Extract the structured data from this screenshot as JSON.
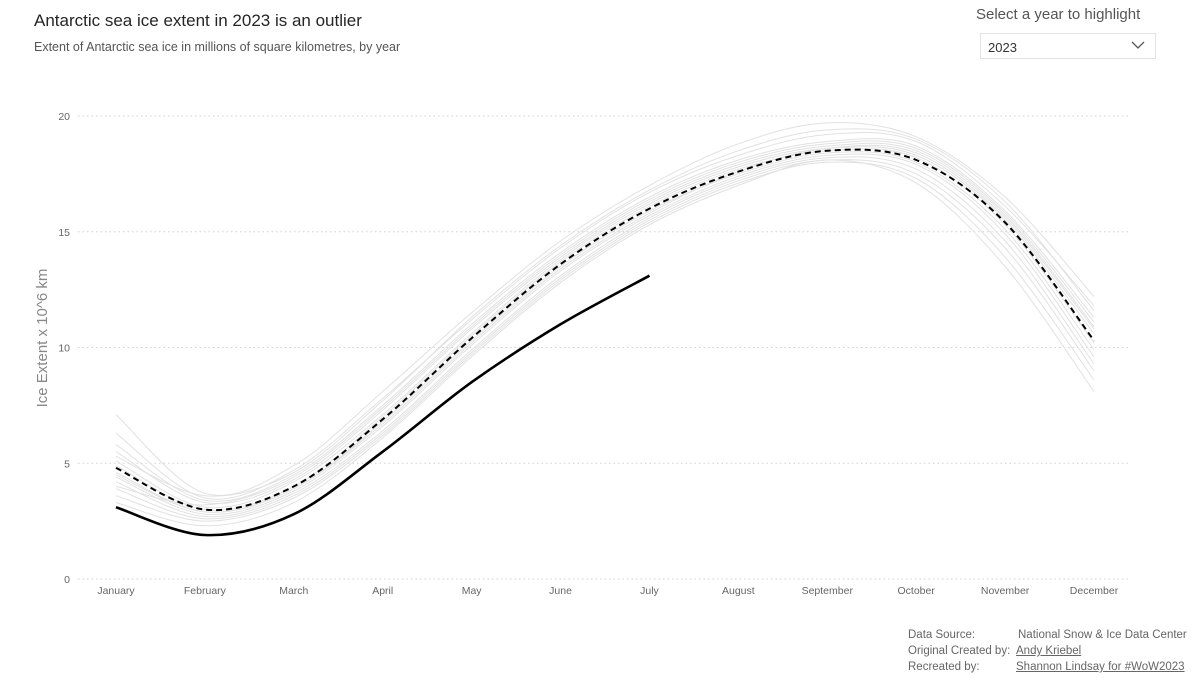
{
  "header": {
    "title": "Antarctic sea ice extent in 2023 is an outlier",
    "subtitle": "Extent of Antarctic sea ice in millions of square kilometres, by year"
  },
  "year_selector": {
    "label": "Select a year to highlight",
    "selected": "2023",
    "icon": "chevron-down-icon"
  },
  "credits": {
    "data_source_label": "Data Source:",
    "data_source_value": "National Snow & Ice Data Center",
    "original_label": "Original Created by:",
    "original_value": "Andy Kriebel",
    "recreated_label": "Recreated by:",
    "recreated_value": "Shannon Lindsay for #WoW2023"
  },
  "chart_data": {
    "type": "line",
    "title": "",
    "xlabel": "",
    "ylabel": "Ice Extent x 10^6 km",
    "categories": [
      "January",
      "February",
      "March",
      "April",
      "May",
      "June",
      "July",
      "August",
      "September",
      "October",
      "November",
      "December"
    ],
    "ylim": [
      0,
      20
    ],
    "yticks": [
      0,
      5,
      10,
      15,
      20
    ],
    "grid": true,
    "colors": {
      "background_years": "#e1e1e1",
      "highlight": "#000000",
      "median": "#000000",
      "gridline": "#d0d0d0"
    },
    "highlight": {
      "name": "2023",
      "values": [
        3.1,
        1.9,
        2.8,
        5.5,
        8.5,
        11.0,
        13.1
      ]
    },
    "median": {
      "style": "dashed",
      "values": [
        4.8,
        3.0,
        4.0,
        6.9,
        10.4,
        13.6,
        16.0,
        17.6,
        18.5,
        18.1,
        15.4,
        10.3
      ]
    },
    "series": [
      {
        "values": [
          7.1,
          3.7,
          4.9,
          8.1,
          11.5,
          14.6,
          17.0,
          18.8,
          19.7,
          19.1,
          16.5,
          12.2
        ]
      },
      {
        "values": [
          6.3,
          3.5,
          4.7,
          7.8,
          11.2,
          14.3,
          16.7,
          18.3,
          19.2,
          18.9,
          16.1,
          11.8
        ]
      },
      {
        "values": [
          5.8,
          3.4,
          4.5,
          7.5,
          11.0,
          14.1,
          16.5,
          18.1,
          18.9,
          18.7,
          15.9,
          11.3
        ]
      },
      {
        "values": [
          5.5,
          3.3,
          4.3,
          7.3,
          10.8,
          13.9,
          16.3,
          17.9,
          18.7,
          18.5,
          15.7,
          10.9
        ]
      },
      {
        "values": [
          5.1,
          3.1,
          4.2,
          7.1,
          10.6,
          13.8,
          16.2,
          17.8,
          18.6,
          18.3,
          15.5,
          10.6
        ]
      },
      {
        "values": [
          4.9,
          3.0,
          4.0,
          7.0,
          10.5,
          13.7,
          16.1,
          17.7,
          18.5,
          18.2,
          15.3,
          10.2
        ]
      },
      {
        "values": [
          4.6,
          2.9,
          3.9,
          6.8,
          10.3,
          13.5,
          15.9,
          17.5,
          18.4,
          18.0,
          15.1,
          9.9
        ]
      },
      {
        "values": [
          4.4,
          2.8,
          3.8,
          6.6,
          10.1,
          13.3,
          15.7,
          17.4,
          18.3,
          17.9,
          14.9,
          9.6
        ]
      },
      {
        "values": [
          4.2,
          2.7,
          3.7,
          6.4,
          9.9,
          13.1,
          15.6,
          17.3,
          18.2,
          17.7,
          14.6,
          9.3
        ]
      },
      {
        "values": [
          3.9,
          2.6,
          3.6,
          6.3,
          9.8,
          13.0,
          15.5,
          17.2,
          18.1,
          17.5,
          14.3,
          9.0
        ]
      },
      {
        "values": [
          3.6,
          2.5,
          3.5,
          6.2,
          9.7,
          12.9,
          15.4,
          17.1,
          18.0,
          17.3,
          13.9,
          8.6
        ]
      },
      {
        "values": [
          3.3,
          2.3,
          3.3,
          6.1,
          9.6,
          12.8,
          15.3,
          17.0,
          18.1,
          17.1,
          13.5,
          8.1
        ]
      },
      {
        "values": [
          5.3,
          3.6,
          4.6,
          7.7,
          11.3,
          14.4,
          16.8,
          18.5,
          19.4,
          19.0,
          16.3,
          11.6
        ]
      },
      {
        "values": [
          4.0,
          3.2,
          4.4,
          7.4,
          10.9,
          14.0,
          16.4,
          18.0,
          18.8,
          18.6,
          15.8,
          11.1
        ]
      },
      {
        "values": [
          4.5,
          2.9,
          3.9,
          6.7,
          10.2,
          13.4,
          15.8,
          17.6,
          18.6,
          18.4,
          15.6,
          10.8
        ]
      }
    ]
  }
}
